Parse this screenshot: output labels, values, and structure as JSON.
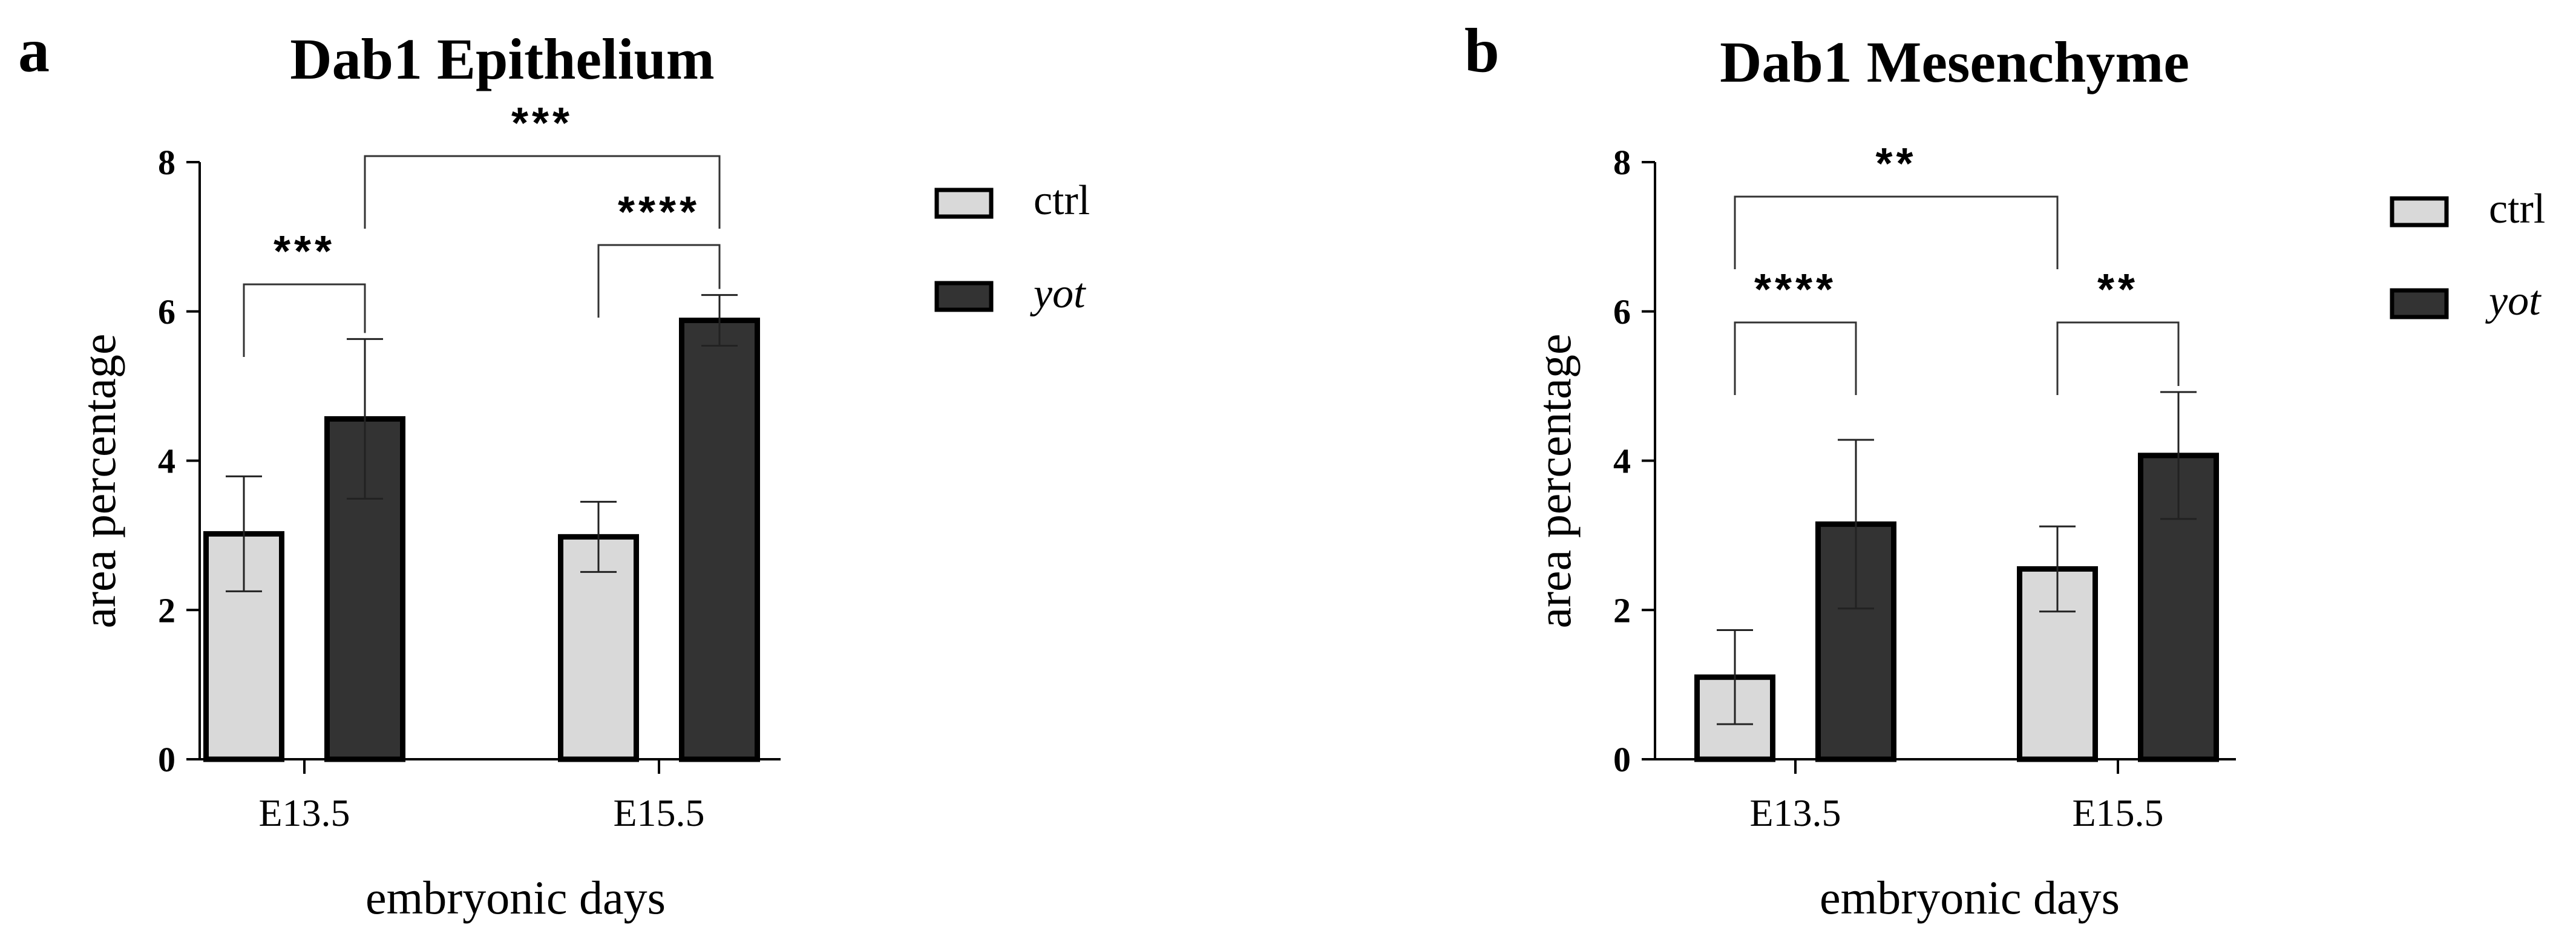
{
  "panels": [
    {
      "letter": "a"
    },
    {
      "letter": "b"
    }
  ],
  "chart_data": [
    {
      "type": "bar",
      "title": "Dab1 Epithelium",
      "xlabel": "embryonic days",
      "ylabel": "area percentage",
      "categories": [
        "E13.5",
        "E15.5"
      ],
      "ylim": [
        0,
        8
      ],
      "yticks": [
        0,
        2,
        4,
        6,
        8
      ],
      "series": [
        {
          "name": "ctrl",
          "color": "#d9d9d9",
          "values": [
            3.02,
            2.98
          ],
          "errors": [
            0.77,
            0.47
          ]
        },
        {
          "name": "yot",
          "italic": true,
          "color": "#333333",
          "values": [
            4.56,
            5.88
          ],
          "errors": [
            1.07,
            0.34
          ]
        }
      ],
      "significance": [
        {
          "label": "***",
          "from": {
            "category": 0,
            "series": 0
          },
          "to": {
            "category": 0,
            "series": 1
          }
        },
        {
          "label": "****",
          "from": {
            "category": 1,
            "series": 0
          },
          "to": {
            "category": 1,
            "series": 1
          }
        },
        {
          "label": "***",
          "from": {
            "category": 0,
            "series": 1
          },
          "to": {
            "category": 1,
            "series": 1
          }
        }
      ],
      "legend_position": "right"
    },
    {
      "type": "bar",
      "title": "Dab1 Mesenchyme",
      "xlabel": "embryonic days",
      "ylabel": "area percentage",
      "categories": [
        "E13.5",
        "E15.5"
      ],
      "ylim": [
        0,
        8
      ],
      "yticks": [
        0,
        2,
        4,
        6,
        8
      ],
      "series": [
        {
          "name": "ctrl",
          "color": "#d9d9d9",
          "values": [
            1.1,
            2.55
          ],
          "errors": [
            0.63,
            0.57
          ]
        },
        {
          "name": "yot",
          "italic": true,
          "color": "#333333",
          "values": [
            3.15,
            4.07
          ],
          "errors": [
            1.13,
            0.85
          ]
        }
      ],
      "significance": [
        {
          "label": "****",
          "from": {
            "category": 0,
            "series": 0
          },
          "to": {
            "category": 0,
            "series": 1
          }
        },
        {
          "label": "**",
          "from": {
            "category": 1,
            "series": 0
          },
          "to": {
            "category": 1,
            "series": 1
          }
        },
        {
          "label": "**",
          "from": {
            "category": 0,
            "series": 0
          },
          "to": {
            "category": 1,
            "series": 0
          }
        }
      ],
      "legend_position": "right"
    }
  ]
}
